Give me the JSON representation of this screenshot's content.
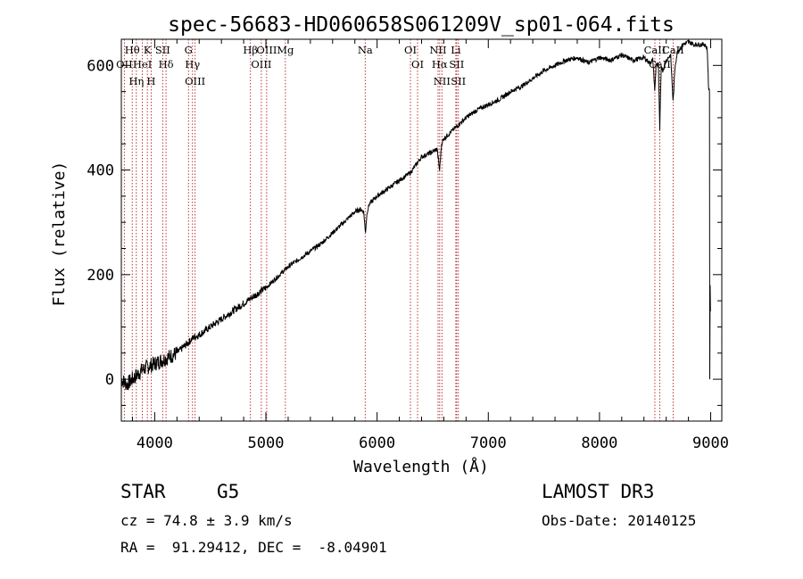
{
  "chart_data": {
    "type": "line",
    "title": "spec-56683-HD060658S061209V_sp01-064.fits",
    "xlabel": "Wavelength (Å)",
    "ylabel": "Flux (relative)",
    "xlim": [
      3700,
      9100
    ],
    "ylim": [
      -80,
      650
    ],
    "xticks": [
      4000,
      5000,
      6000,
      7000,
      8000,
      9000
    ],
    "yticks": [
      0,
      200,
      400,
      600
    ],
    "xtick_labels": [
      "4000",
      "5000",
      "6000",
      "7000",
      "8000",
      "9000"
    ],
    "ytick_labels": [
      "0",
      "200",
      "400",
      "600"
    ],
    "series": [
      {
        "name": "flux",
        "x": [
          3700,
          3750,
          3800,
          3850,
          3900,
          3950,
          4000,
          4050,
          4100,
          4150,
          4200,
          4250,
          4300,
          4350,
          4400,
          4500,
          4600,
          4700,
          4800,
          4900,
          5000,
          5100,
          5200,
          5300,
          5400,
          5500,
          5600,
          5700,
          5800,
          5850,
          5880,
          5895,
          5910,
          5930,
          6000,
          6100,
          6200,
          6300,
          6350,
          6400,
          6500,
          6540,
          6562,
          6580,
          6600,
          6700,
          6800,
          6900,
          7000,
          7100,
          7200,
          7300,
          7400,
          7500,
          7600,
          7700,
          7800,
          7900,
          8000,
          8100,
          8200,
          8300,
          8400,
          8450,
          8480,
          8498,
          8510,
          8530,
          8542,
          8555,
          8570,
          8600,
          8640,
          8662,
          8680,
          8700,
          8750,
          8800,
          8850,
          8900,
          8950,
          8970,
          8980,
          8990
        ],
        "y": [
          0,
          -10,
          0,
          10,
          20,
          25,
          30,
          35,
          40,
          45,
          50,
          60,
          70,
          80,
          85,
          100,
          115,
          130,
          145,
          160,
          175,
          195,
          215,
          230,
          245,
          260,
          280,
          300,
          320,
          325,
          320,
          280,
          320,
          335,
          350,
          365,
          380,
          395,
          410,
          425,
          435,
          440,
          400,
          450,
          460,
          480,
          500,
          515,
          525,
          535,
          550,
          560,
          575,
          590,
          600,
          610,
          615,
          605,
          615,
          610,
          620,
          610,
          615,
          605,
          610,
          550,
          605,
          600,
          475,
          600,
          590,
          610,
          620,
          530,
          600,
          625,
          640,
          645,
          640,
          640,
          640,
          630,
          560,
          550
        ]
      }
    ],
    "emission_lines": [
      {
        "label": "Hθ",
        "x": 3798
      },
      {
        "label": "OII",
        "x": 3727
      },
      {
        "label": "Hη",
        "x": 3835
      },
      {
        "label": "HeI",
        "x": 3889
      },
      {
        "label": "K",
        "x": 3934
      },
      {
        "label": "H",
        "x": 3968
      },
      {
        "label": "SII",
        "x": 4072
      },
      {
        "label": "Hδ",
        "x": 4102
      },
      {
        "label": "G",
        "x": 4304
      },
      {
        "label": "Hγ",
        "x": 4340
      },
      {
        "label": "OIII",
        "x": 4363
      },
      {
        "label": "Hβ",
        "x": 4861
      },
      {
        "label": "OIII",
        "x": 4959
      },
      {
        "label": "OIII",
        "x": 5007
      },
      {
        "label": "Mg",
        "x": 5175
      },
      {
        "label": "Na",
        "x": 5893
      },
      {
        "label": "OI",
        "x": 6300
      },
      {
        "label": "OI",
        "x": 6364
      },
      {
        "label": "NII",
        "x": 6548
      },
      {
        "label": "Hα",
        "x": 6563
      },
      {
        "label": "NII",
        "x": 6583
      },
      {
        "label": "Li",
        "x": 6708
      },
      {
        "label": "SII",
        "x": 6716
      },
      {
        "label": "SII",
        "x": 6731
      },
      {
        "label": "CaII",
        "x": 8498
      },
      {
        "label": "CaII",
        "x": 8542
      },
      {
        "label": "CaII",
        "x": 8662
      }
    ]
  },
  "info": {
    "class_label": "STAR",
    "subclass": "G5",
    "survey": "LAMOST DR3",
    "cz": "cz = 74.8 ± 3.9 km/s",
    "obs_date": "Obs-Date: 20140125",
    "coords": "RA =  91.29412, DEC =  -8.04901"
  },
  "colors": {
    "line": "#000000",
    "marker": "#b22222",
    "axis": "#000000"
  }
}
